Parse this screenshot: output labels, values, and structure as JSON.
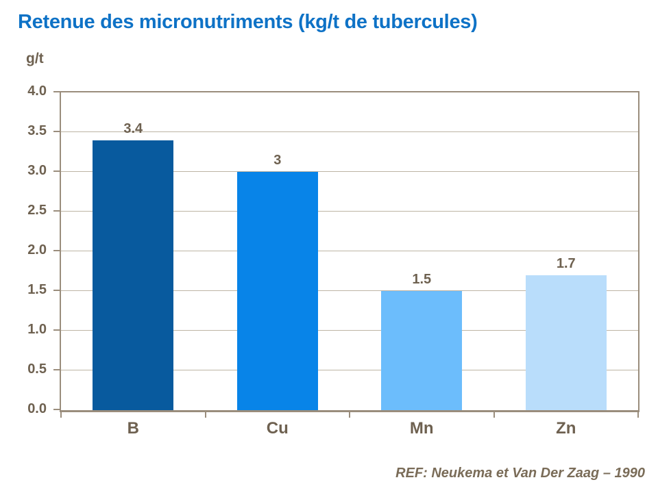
{
  "slide": {
    "title": "Retenue des micronutriments (kg/t de tubercules)",
    "y_axis_unit": "g/t",
    "reference": "REF: Neukema et Van Der Zaag – 1990"
  },
  "chart_data": {
    "type": "bar",
    "title": "Retenue des micronutriments (kg/t de tubercules)",
    "xlabel": "",
    "ylabel": "g/t",
    "categories": [
      "B",
      "Cu",
      "Mn",
      "Zn"
    ],
    "values": [
      3.4,
      3,
      1.5,
      1.7
    ],
    "value_labels": [
      "3.4",
      "3",
      "1.5",
      "1.7"
    ],
    "bar_colors": [
      "#085a9e",
      "#0884e8",
      "#6cbdfc",
      "#b9ddfb"
    ],
    "ylim": [
      0,
      4
    ],
    "ytick_step": 0.5,
    "ytick_labels": [
      "0.0",
      "0.5",
      "1.0",
      "1.5",
      "2.0",
      "2.5",
      "3.0",
      "3.5",
      "4.0"
    ],
    "grid": true,
    "legend": false,
    "annotations": [
      "REF: Neukema et Van Der Zaag – 1990"
    ]
  },
  "colors": {
    "title_text": "#0e72c6",
    "axis_text": "#6e6150",
    "axis_line": "#9a8d7c",
    "gridline": "#bdb4a4",
    "reference_text": "#7a6c58",
    "background": "#ffffff"
  }
}
